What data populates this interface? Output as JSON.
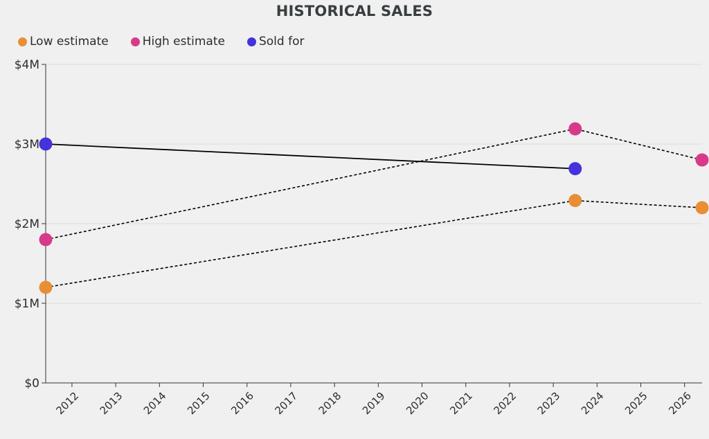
{
  "chart_data": {
    "type": "line",
    "title": "HISTORICAL SALES",
    "xlabel": "",
    "ylabel": "",
    "xlim": [
      2011.4,
      2026.4
    ],
    "ylim": [
      0,
      4000000
    ],
    "x_ticks": [
      2012,
      2013,
      2014,
      2015,
      2016,
      2017,
      2018,
      2019,
      2020,
      2021,
      2022,
      2023,
      2024,
      2025,
      2026
    ],
    "x_tick_labels": [
      "2012",
      "2013",
      "2014",
      "2015",
      "2016",
      "2017",
      "2018",
      "2019",
      "2020",
      "2021",
      "2022",
      "2023",
      "2024",
      "2025",
      "2026"
    ],
    "y_ticks": [
      0,
      1000000,
      2000000,
      3000000,
      4000000
    ],
    "y_tick_labels": [
      "$0",
      "$1M",
      "$2M",
      "$3M",
      "$4M"
    ],
    "grid": true,
    "legend_position": "top-left",
    "series": [
      {
        "name": "Low estimate",
        "color": "#e88f35",
        "line_style": "dashed",
        "points": [
          {
            "x": 2011.4,
            "y": 1200000
          },
          {
            "x": 2023.5,
            "y": 2290000
          },
          {
            "x": 2026.4,
            "y": 2200000
          }
        ]
      },
      {
        "name": "High estimate",
        "color": "#d63b8a",
        "line_style": "dashed",
        "points": [
          {
            "x": 2011.4,
            "y": 1800000
          },
          {
            "x": 2023.5,
            "y": 3190000
          },
          {
            "x": 2026.4,
            "y": 2800000
          }
        ]
      },
      {
        "name": "Sold for",
        "color": "#4433dd",
        "line_style": "solid",
        "points": [
          {
            "x": 2011.4,
            "y": 3000000
          },
          {
            "x": 2023.5,
            "y": 2690000
          }
        ]
      }
    ]
  }
}
